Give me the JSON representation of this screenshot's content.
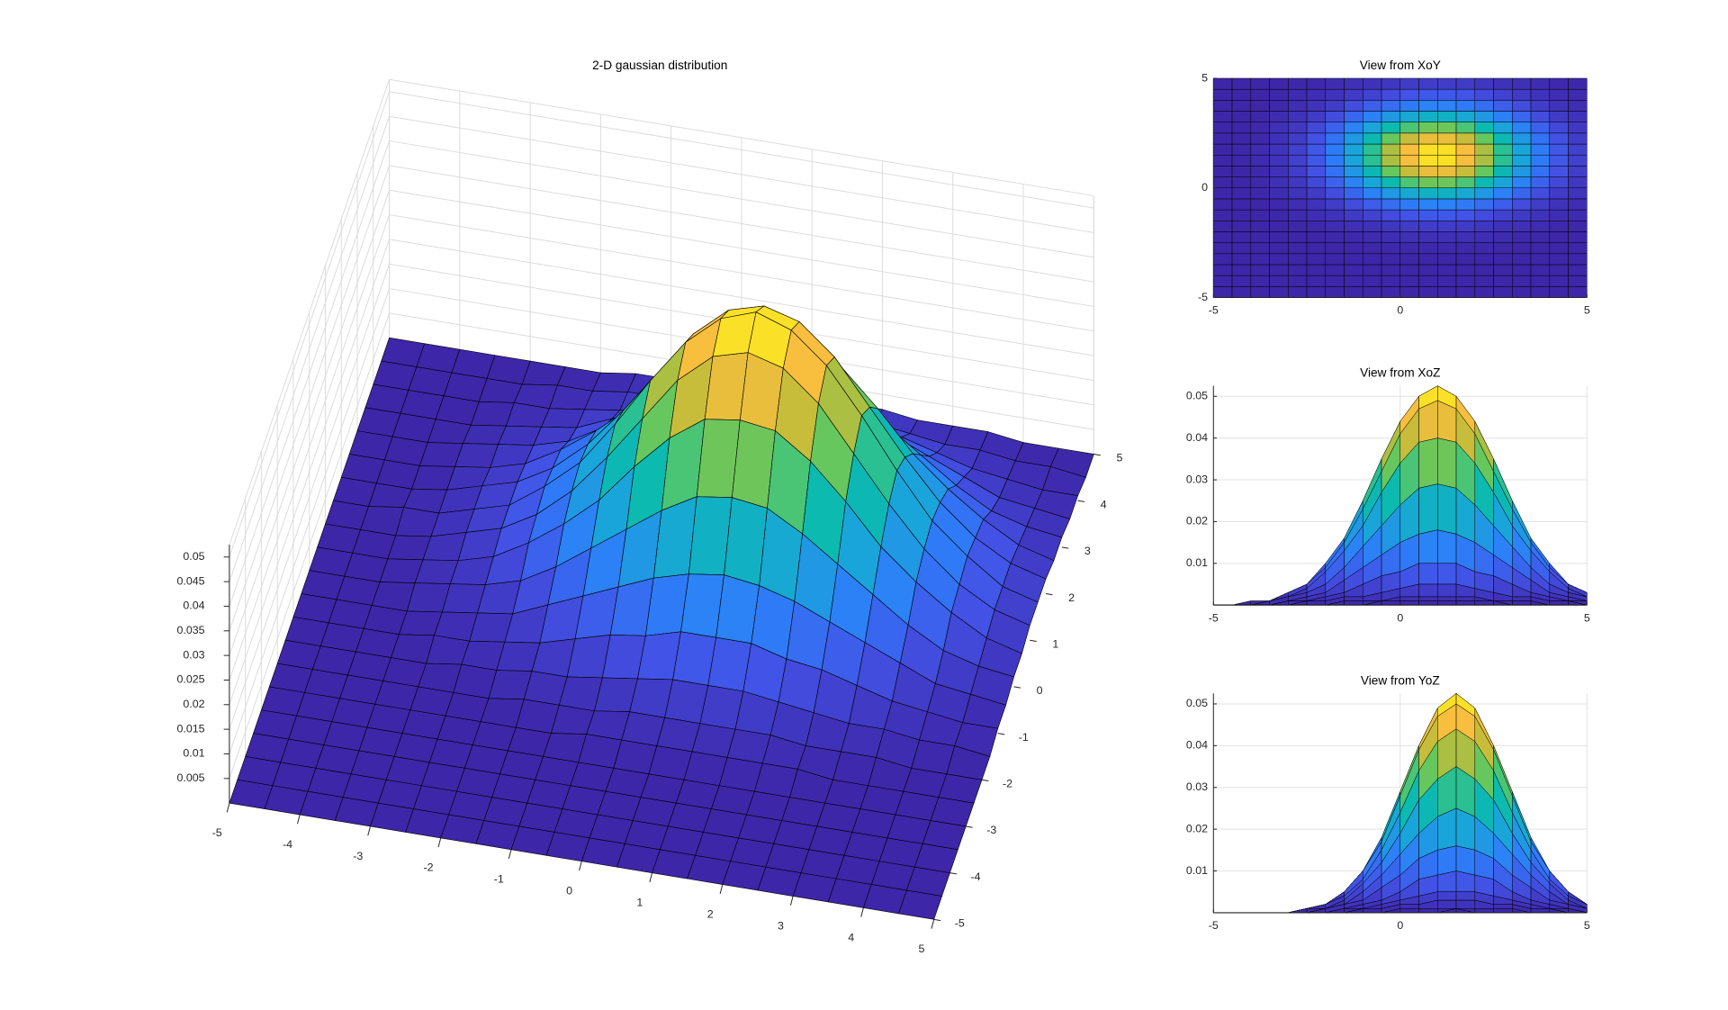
{
  "chart_data": [
    {
      "type": "surface",
      "title": "2-D gaussian distribution",
      "x": [
        -5,
        -4.5,
        -4,
        -3.5,
        -3,
        -2.5,
        -2,
        -1.5,
        -1,
        -0.5,
        0,
        0.5,
        1,
        1.5,
        2,
        2.5,
        3,
        3.5,
        4,
        4.5,
        5
      ],
      "y": [
        -5,
        -4.5,
        -4,
        -3.5,
        -3,
        -2.5,
        -2,
        -1.5,
        -1,
        -0.5,
        0,
        0.5,
        1,
        1.5,
        2,
        2.5,
        3,
        3.5,
        4,
        4.5,
        5
      ],
      "z": [
        [
          0,
          0,
          0,
          0,
          0,
          0,
          0,
          0,
          0,
          0,
          0,
          0,
          0,
          0,
          0,
          0,
          0,
          0,
          0,
          0,
          0
        ],
        [
          0,
          0,
          0,
          0,
          0,
          0,
          0,
          0,
          0,
          0,
          0,
          0,
          0,
          0,
          0,
          0,
          0,
          0,
          0,
          0,
          0
        ],
        [
          0,
          0,
          0,
          0,
          0,
          0,
          0,
          0,
          0,
          0,
          0,
          0,
          0,
          0,
          0,
          0,
          0,
          0,
          0,
          0,
          0
        ],
        [
          0,
          0,
          0,
          0,
          0,
          0,
          0,
          0,
          0,
          0,
          0,
          0,
          0,
          0,
          0,
          0,
          0,
          0,
          0,
          0,
          0
        ],
        [
          0,
          0,
          0,
          0,
          0,
          0,
          0,
          0,
          0,
          0,
          0,
          0,
          0,
          0,
          0,
          0,
          0,
          0,
          0,
          0,
          0
        ],
        [
          0,
          0,
          0,
          0,
          0,
          0,
          0,
          0,
          0,
          0.001,
          0.001,
          0.001,
          0.001,
          0.001,
          0.001,
          0.001,
          0,
          0,
          0,
          0,
          0
        ],
        [
          0,
          0,
          0,
          0,
          0,
          0,
          0,
          0.001,
          0.001,
          0.001,
          0.002,
          0.002,
          0.002,
          0.002,
          0.002,
          0.001,
          0.001,
          0.001,
          0,
          0,
          0
        ],
        [
          0,
          0,
          0,
          0,
          0,
          0.001,
          0.001,
          0.002,
          0.002,
          0.003,
          0.004,
          0.005,
          0.005,
          0.005,
          0.004,
          0.003,
          0.002,
          0.002,
          0.001,
          0.001,
          0
        ],
        [
          0,
          0,
          0,
          0,
          0.001,
          0.001,
          0.002,
          0.003,
          0.005,
          0.007,
          0.008,
          0.01,
          0.01,
          0.01,
          0.008,
          0.007,
          0.005,
          0.003,
          0.002,
          0.001,
          0.001
        ],
        [
          0,
          0,
          0,
          0,
          0.001,
          0.002,
          0.003,
          0.006,
          0.009,
          0.012,
          0.015,
          0.017,
          0.018,
          0.017,
          0.015,
          0.012,
          0.009,
          0.006,
          0.003,
          0.002,
          0.001
        ],
        [
          0,
          0,
          0,
          0.001,
          0.002,
          0.003,
          0.005,
          0.009,
          0.014,
          0.019,
          0.024,
          0.028,
          0.029,
          0.028,
          0.024,
          0.019,
          0.014,
          0.009,
          0.005,
          0.003,
          0.002
        ],
        [
          0,
          0,
          0,
          0.001,
          0.002,
          0.004,
          0.008,
          0.013,
          0.019,
          0.027,
          0.034,
          0.039,
          0.04,
          0.039,
          0.034,
          0.027,
          0.019,
          0.013,
          0.008,
          0.004,
          0.002
        ],
        [
          0,
          0,
          0,
          0.001,
          0.003,
          0.005,
          0.009,
          0.015,
          0.023,
          0.032,
          0.041,
          0.047,
          0.049,
          0.047,
          0.041,
          0.032,
          0.023,
          0.015,
          0.009,
          0.005,
          0.003
        ],
        [
          0,
          0,
          0.001,
          0.001,
          0.003,
          0.005,
          0.01,
          0.016,
          0.025,
          0.035,
          0.044,
          0.05,
          0.0525,
          0.05,
          0.044,
          0.035,
          0.025,
          0.016,
          0.01,
          0.005,
          0.003
        ],
        [
          0,
          0,
          0,
          0.001,
          0.003,
          0.005,
          0.009,
          0.015,
          0.023,
          0.032,
          0.041,
          0.047,
          0.049,
          0.047,
          0.041,
          0.032,
          0.023,
          0.015,
          0.009,
          0.005,
          0.003
        ],
        [
          0,
          0,
          0,
          0.001,
          0.002,
          0.004,
          0.008,
          0.013,
          0.019,
          0.027,
          0.034,
          0.039,
          0.04,
          0.039,
          0.034,
          0.027,
          0.019,
          0.013,
          0.008,
          0.004,
          0.002
        ],
        [
          0,
          0,
          0,
          0.001,
          0.002,
          0.003,
          0.005,
          0.009,
          0.014,
          0.019,
          0.024,
          0.028,
          0.029,
          0.028,
          0.024,
          0.019,
          0.014,
          0.009,
          0.005,
          0.003,
          0.002
        ],
        [
          0,
          0,
          0,
          0,
          0.001,
          0.002,
          0.003,
          0.006,
          0.009,
          0.012,
          0.015,
          0.017,
          0.018,
          0.017,
          0.015,
          0.012,
          0.009,
          0.006,
          0.003,
          0.002,
          0.001
        ],
        [
          0,
          0,
          0,
          0,
          0.001,
          0.001,
          0.002,
          0.003,
          0.005,
          0.007,
          0.008,
          0.01,
          0.01,
          0.01,
          0.008,
          0.007,
          0.005,
          0.003,
          0.002,
          0.001,
          0.001
        ],
        [
          0,
          0,
          0,
          0,
          0,
          0.001,
          0.001,
          0.002,
          0.002,
          0.003,
          0.004,
          0.005,
          0.005,
          0.005,
          0.004,
          0.003,
          0.002,
          0.002,
          0.001,
          0.001,
          0
        ],
        [
          0,
          0,
          0,
          0,
          0,
          0,
          0,
          0.001,
          0.001,
          0.001,
          0.002,
          0.002,
          0.002,
          0.002,
          0.002,
          0.001,
          0.001,
          0.001,
          0,
          0,
          0
        ]
      ],
      "xlim": [
        -5,
        5
      ],
      "ylim": [
        -5,
        5
      ],
      "zlim": [
        0,
        0.0525
      ],
      "xticks": [
        -5,
        -4,
        -3,
        -2,
        -1,
        0,
        1,
        2,
        3,
        4,
        5
      ],
      "yticks": [
        -5,
        -4,
        -3,
        -2,
        -1,
        0,
        1,
        2,
        3,
        4,
        5
      ],
      "zticks": [
        0.005,
        0.01,
        0.015,
        0.02,
        0.025,
        0.03,
        0.035,
        0.04,
        0.045,
        0.05
      ],
      "grid": true,
      "edgecolor": "#000000",
      "colormap": [
        "#3e26a8",
        "#4352e6",
        "#2d7ff9",
        "#1aa5da",
        "#0bbbad",
        "#5cc863",
        "#c0bd39",
        "#fcbf3e",
        "#f9fb15"
      ]
    },
    {
      "type": "view",
      "plane": "xy",
      "title": "View from XoY",
      "xlim": [
        -5,
        5
      ],
      "ylim": [
        -5,
        5
      ],
      "xticks": [
        -5,
        0,
        5
      ],
      "yticks": [
        -5,
        0,
        5
      ],
      "grid": false
    },
    {
      "type": "view",
      "plane": "xz",
      "title": "View from XoZ",
      "xlim": [
        -5,
        5
      ],
      "ylim": [
        0,
        0.0525
      ],
      "xticks": [
        -5,
        0,
        5
      ],
      "yticks": [
        0.01,
        0.02,
        0.03,
        0.04,
        0.05
      ],
      "grid": true
    },
    {
      "type": "view",
      "plane": "yz",
      "title": "View from YoZ",
      "xlim": [
        -5,
        5
      ],
      "ylim": [
        0,
        0.0525
      ],
      "xticks": [
        -5,
        0,
        5
      ],
      "yticks": [
        0.01,
        0.02,
        0.03,
        0.04,
        0.05
      ],
      "grid": true
    }
  ]
}
